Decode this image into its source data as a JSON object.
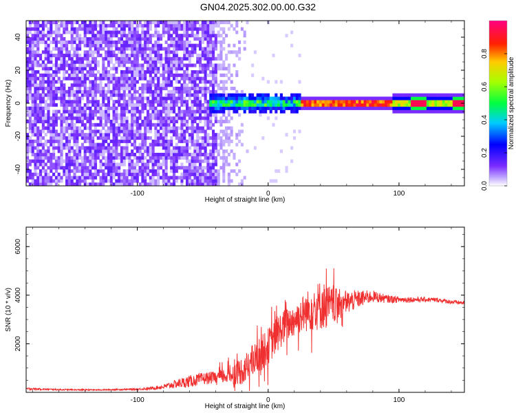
{
  "figure_title": "GN04.2025.302.00.00.G32",
  "colors": {
    "line": "#f03030",
    "axis": "#000000",
    "background": "#ffffff"
  },
  "chart_data": [
    {
      "type": "heatmap",
      "title": "GN04.2025.302.00.00.G32",
      "xlabel": "Height of straight line (km)",
      "ylabel": "Frequency (Hz)",
      "xlim": [
        -185,
        150
      ],
      "ylim": [
        -50,
        50
      ],
      "x_ticks": [
        -100,
        0,
        100
      ],
      "y_ticks": [
        -40,
        -20,
        0,
        20,
        40
      ],
      "colorbar": {
        "label": "Normalized spectral amplitude",
        "range": [
          0,
          1
        ],
        "ticks": [
          "0.0",
          "0.2",
          "0.4",
          "0.6",
          "0.8"
        ],
        "colormap": "rainbow (white-purple-blue-cyan-green-yellow-red-magenta)"
      },
      "regions": [
        {
          "x": [
            -185,
            -40
          ],
          "freq": [
            -50,
            50
          ],
          "amplitude": 0.08,
          "pattern": "broadband noise"
        },
        {
          "x": [
            -40,
            -15
          ],
          "freq": [
            -50,
            50
          ],
          "amplitude": 0.02,
          "pattern": "fading noise"
        },
        {
          "x": [
            -45,
            25
          ],
          "freq": [
            -6,
            6
          ],
          "amplitude": 0.35,
          "pattern": "mixed tone"
        },
        {
          "x": [
            25,
            95
          ],
          "freq": [
            -2,
            2
          ],
          "amplitude": 0.8,
          "pattern": "narrow tone near 0 Hz"
        },
        {
          "x": [
            95,
            150
          ],
          "freq": [
            -3,
            3
          ],
          "amplitude": 0.9,
          "pattern": "narrow tone near 0 Hz"
        }
      ]
    },
    {
      "type": "line",
      "xlabel": "Height of straight line (km)",
      "ylabel": "SNR (10 * v/v)",
      "xlim": [
        -185,
        150
      ],
      "ylim": [
        0,
        6800
      ],
      "x_ticks": [
        -100,
        0,
        100
      ],
      "y_ticks": [
        2000,
        4000,
        6000
      ],
      "series": [
        {
          "name": "SNR",
          "x": [
            -185,
            -160,
            -130,
            -100,
            -90,
            -80,
            -70,
            -60,
            -50,
            -40,
            -30,
            -20,
            -10,
            0,
            10,
            20,
            30,
            40,
            50,
            60,
            70,
            80,
            90,
            100,
            110,
            120,
            130,
            140,
            150
          ],
          "values": [
            150,
            110,
            100,
            130,
            160,
            230,
            350,
            450,
            560,
            620,
            700,
            900,
            1350,
            1900,
            2600,
            3000,
            3350,
            3600,
            3550,
            3700,
            3850,
            3950,
            3850,
            3820,
            3820,
            3820,
            3800,
            3720,
            3680
          ],
          "spread": [
            90,
            60,
            50,
            80,
            120,
            200,
            350,
            500,
            500,
            500,
            700,
            1200,
            1400,
            1500,
            1500,
            1300,
            1700,
            2100,
            1500,
            1000,
            700,
            500,
            350,
            260,
            230,
            200,
            190,
            180,
            150
          ]
        }
      ]
    }
  ]
}
